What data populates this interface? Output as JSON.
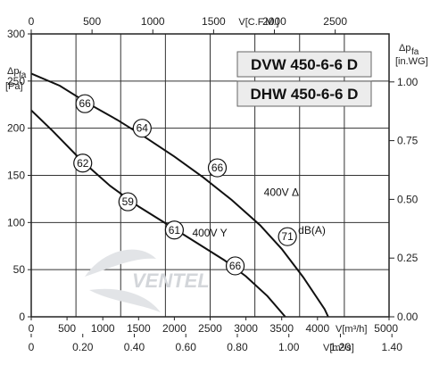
{
  "chart_data": {
    "type": "line",
    "title": "",
    "models": [
      "DVW 450-6-6 D",
      "DHW 450-6-6 D"
    ],
    "x_axis_bottom": {
      "unit_label": "V[m³/h]",
      "range": [
        0,
        5000
      ],
      "ticks": [
        "0",
        "500",
        "1000",
        "1500",
        "2000",
        "2500",
        "3000",
        "3500",
        "4000",
        "5000"
      ]
    },
    "x_axis_bottom2": {
      "unit_label": "V[m³/s]",
      "ticks": [
        "0",
        "0.20",
        "0.40",
        "0.60",
        "0.80",
        "1.00",
        "1.20",
        "1.40"
      ]
    },
    "x_axis_top": {
      "unit_label": "V[C.F.M.]",
      "ticks": [
        "0",
        "500",
        "1000",
        "1500",
        "2000",
        "2500"
      ]
    },
    "y_axis_left": {
      "label": "Δp",
      "label_sub": "fa",
      "unit": "[Pa]",
      "range": [
        0,
        300
      ],
      "ticks": [
        "0",
        "50",
        "100",
        "150",
        "200",
        "250",
        "300"
      ]
    },
    "y_axis_right": {
      "label": "Δp",
      "label_sub": "fa",
      "unit": "[in.WG]",
      "ticks": [
        "0.00",
        "0.25",
        "0.50",
        "0.75",
        "1.00"
      ]
    },
    "series": [
      {
        "name": "400V Δ",
        "points": [
          [
            0,
            258
          ],
          [
            400,
            245
          ],
          [
            800,
            226
          ],
          [
            1200,
            209
          ],
          [
            1600,
            190
          ],
          [
            2000,
            170
          ],
          [
            2400,
            148
          ],
          [
            2800,
            124
          ],
          [
            3200,
            97
          ],
          [
            3500,
            72
          ],
          [
            3800,
            42
          ],
          [
            4100,
            8
          ],
          [
            4150,
            0
          ]
        ],
        "markers": [
          {
            "x": 750,
            "y": 226,
            "label": "66"
          },
          {
            "x": 1550,
            "y": 200,
            "label": "64"
          },
          {
            "x": 2600,
            "y": 158,
            "label": "66"
          },
          {
            "x": 3580,
            "y": 85,
            "label": "71"
          }
        ],
        "label_pos": {
          "x": 3250,
          "y": 128
        }
      },
      {
        "name": "400V Y",
        "points": [
          [
            0,
            219
          ],
          [
            300,
            197
          ],
          [
            700,
            166
          ],
          [
            1100,
            139
          ],
          [
            1500,
            117
          ],
          [
            1900,
            98
          ],
          [
            2300,
            79
          ],
          [
            2700,
            60
          ],
          [
            3000,
            43
          ],
          [
            3300,
            22
          ],
          [
            3550,
            0
          ]
        ],
        "markers": [
          {
            "x": 720,
            "y": 163,
            "label": "62"
          },
          {
            "x": 1350,
            "y": 122,
            "label": "59"
          },
          {
            "x": 2000,
            "y": 92,
            "label": "61"
          },
          {
            "x": 2850,
            "y": 54,
            "label": "66"
          }
        ],
        "label_pos": {
          "x": 2250,
          "y": 85
        }
      }
    ],
    "annotation": "dB(A)",
    "grid": true
  },
  "watermark": "VENTEL"
}
